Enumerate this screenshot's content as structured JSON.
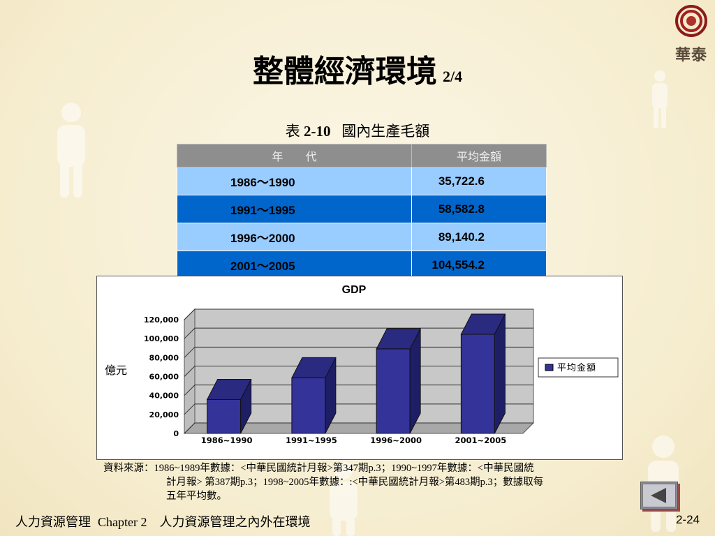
{
  "logo": {
    "text": "華泰"
  },
  "title": {
    "main": "整體經濟環境",
    "page": "2/4"
  },
  "table": {
    "caption_prefix": "表",
    "caption_number": "2-10",
    "caption_title": "國內生產毛額",
    "headers": [
      "年　　代",
      "平均金額"
    ],
    "rows": [
      {
        "period": "1986～1990",
        "amount": "35,722.6"
      },
      {
        "period": "1991～1995",
        "amount": "58,582.8"
      },
      {
        "period": "1996～2000",
        "amount": "89,140.2"
      },
      {
        "period": "2001～2005",
        "amount": "104,554.2"
      }
    ]
  },
  "chart_data": {
    "type": "bar",
    "title": "GDP",
    "xlabel": "",
    "ylabel": "億元",
    "categories": [
      "1986~1990",
      "1991~1995",
      "1996~2000",
      "2001~2005"
    ],
    "series": [
      {
        "name": "平均金額",
        "values": [
          35722.6,
          58582.8,
          89140.2,
          104554.2
        ],
        "color": "#333399"
      }
    ],
    "ylim": [
      0,
      120000
    ],
    "yticks": [
      0,
      20000,
      40000,
      60000,
      80000,
      100000,
      120000
    ],
    "ytick_labels": [
      "0",
      "20,000",
      "40,000",
      "60,000",
      "80,000",
      "100,000",
      "120,000"
    ],
    "grid": true,
    "legend": "right"
  },
  "source": {
    "line1": "資料來源：1986~1989年數據：<中華民國統計月報>第347期p.3；1990~1997年數據：<中華民國統",
    "line2": "計月報> 第387期p.3；1998~2005年數據：:<中華民國統計月報>第483期p.3；數據取每",
    "line3": "五年平均數。"
  },
  "footer": {
    "left": "人力資源管理",
    "chapter": "Chapter 2",
    "topic": "人力資源管理之內外在環境",
    "page": "2-24"
  },
  "nav": {
    "back_icon": "left-arrow-icon"
  }
}
